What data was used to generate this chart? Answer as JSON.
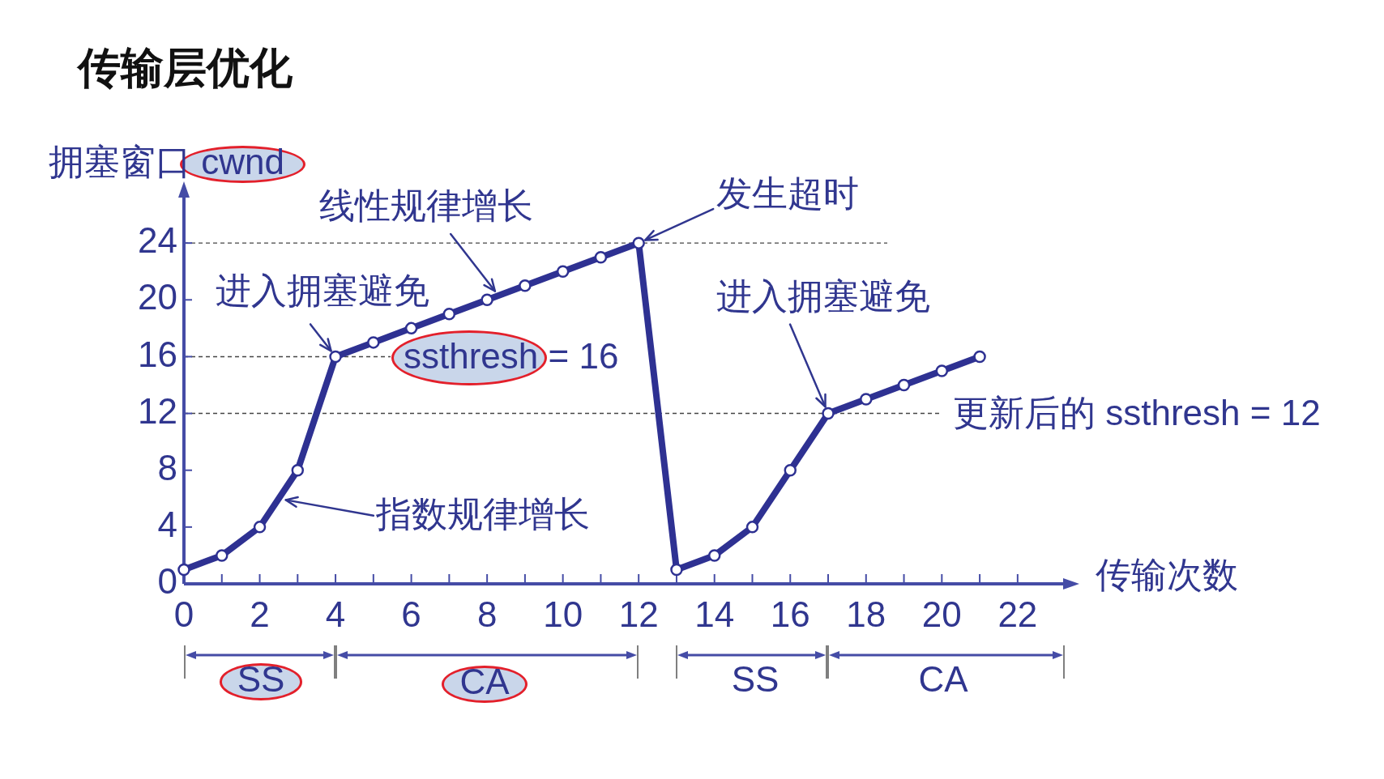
{
  "chart_data": {
    "type": "line",
    "title": "传输层优化",
    "xlabel": "传输次数",
    "ylabel": "拥塞窗口 cwnd",
    "x": [
      0,
      1,
      2,
      3,
      4,
      5,
      6,
      7,
      8,
      9,
      10,
      11,
      12,
      13,
      14,
      15,
      16,
      17,
      18,
      19,
      20,
      21
    ],
    "values": [
      1,
      2,
      4,
      8,
      16,
      17,
      18,
      19,
      20,
      21,
      22,
      23,
      24,
      1,
      2,
      4,
      8,
      12,
      13,
      14,
      15,
      16
    ],
    "color": "#2e3192",
    "marker": "circle",
    "line_style": "solid",
    "xlim": [
      0,
      23.5
    ],
    "ylim": [
      0,
      28
    ],
    "xticks": [
      0,
      {
        "value": 1,
        "label": null
      },
      2,
      {
        "value": 3,
        "label": null
      },
      4,
      {
        "value": 5,
        "label": null
      },
      6,
      {
        "value": 7,
        "label": null
      },
      8,
      {
        "value": 9,
        "label": null
      },
      10,
      {
        "value": 11,
        "label": null
      },
      12,
      {
        "value": 13,
        "label": null
      },
      14,
      {
        "value": 15,
        "label": null
      },
      16,
      {
        "value": 17,
        "label": null
      },
      18,
      {
        "value": 19,
        "label": null
      },
      20,
      {
        "value": 21,
        "label": null
      },
      22
    ],
    "yticks": [
      0,
      4,
      8,
      12,
      16,
      20,
      24
    ],
    "ref_lines": [
      {
        "axis": "y",
        "value": 24,
        "line_style": "dashed",
        "color": "#444444"
      },
      {
        "axis": "y",
        "value": 16,
        "label": "ssthresh = 16",
        "line_style": "dashed",
        "color": "#444444"
      },
      {
        "axis": "y",
        "value": 12,
        "label": "更新后的 ssthresh = 12",
        "line_style": "dashed",
        "color": "#444444"
      }
    ],
    "annotations": [
      {
        "text": "线性规律增长",
        "x": 8.3,
        "y": 20.3
      },
      {
        "text": "发生超时",
        "x": 12,
        "y": 24
      },
      {
        "text": "进入拥塞避免",
        "x": 4,
        "y": 16
      },
      {
        "text": "进入拥塞避免",
        "x": 17,
        "y": 12
      },
      {
        "text": "指数规律增长",
        "x": 2.5,
        "y": 6
      },
      "SS",
      "CA",
      "SS",
      "CA"
    ]
  }
}
